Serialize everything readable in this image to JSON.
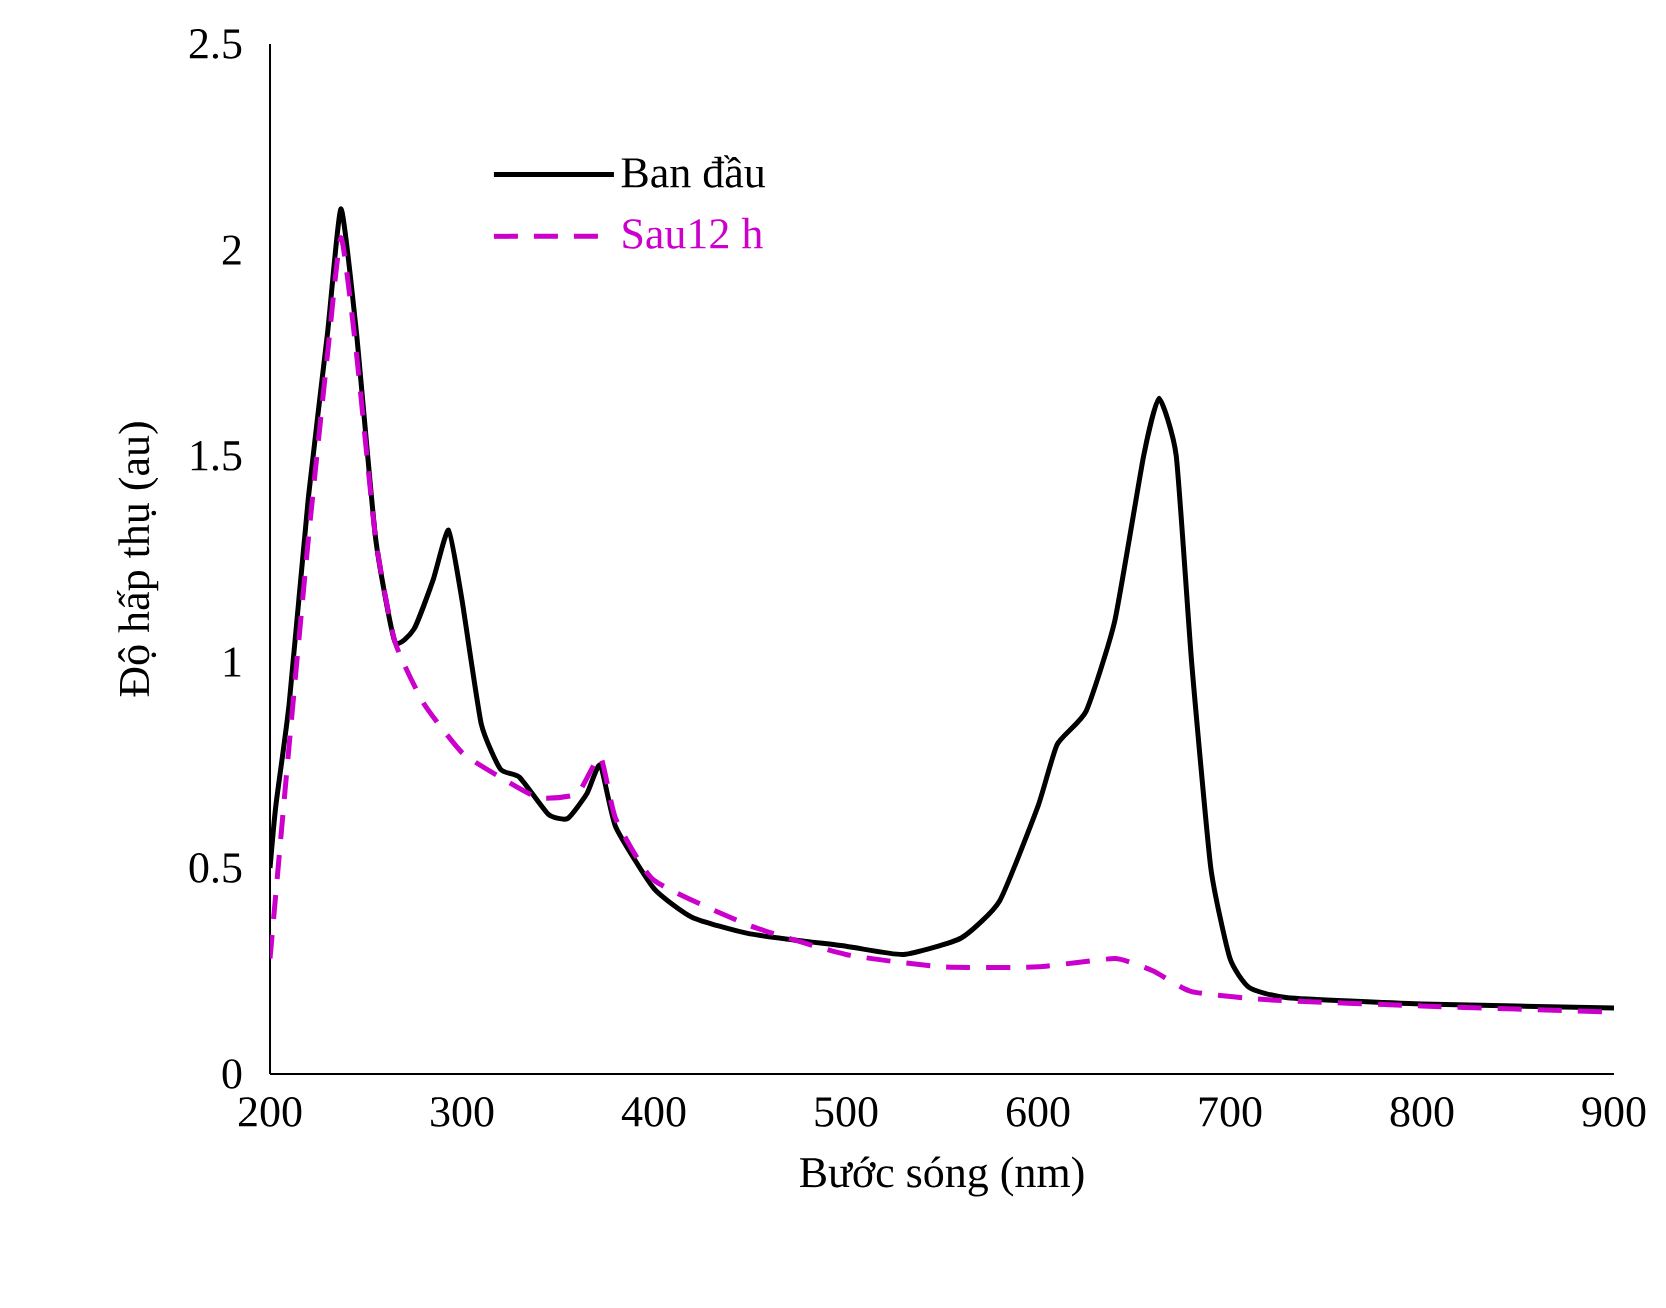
{
  "chart_data": {
    "type": "line",
    "xlabel": "Bước sóng (nm)",
    "ylabel": "Độ hấp thụ (au)",
    "series": [
      {
        "name": "Ban đầu",
        "color": "#000000",
        "line_style": "solid",
        "x": [
          200,
          203,
          210,
          220,
          230,
          237,
          245,
          255,
          265,
          275,
          285,
          293,
          300,
          310,
          320,
          330,
          345,
          355,
          365,
          372,
          380,
          400,
          420,
          450,
          500,
          530,
          560,
          580,
          600,
          610,
          625,
          640,
          655,
          663,
          672,
          680,
          690,
          700,
          710,
          730,
          800,
          900
        ],
        "values": [
          0.5,
          0.65,
          0.9,
          1.4,
          1.8,
          2.1,
          1.8,
          1.3,
          1.05,
          1.08,
          1.2,
          1.32,
          1.15,
          0.85,
          0.74,
          0.72,
          0.63,
          0.62,
          0.68,
          0.75,
          0.6,
          0.45,
          0.38,
          0.34,
          0.31,
          0.29,
          0.33,
          0.42,
          0.65,
          0.8,
          0.88,
          1.1,
          1.5,
          1.64,
          1.5,
          1.0,
          0.5,
          0.28,
          0.21,
          0.185,
          0.17,
          0.16
        ]
      },
      {
        "name": "Sau12 h",
        "color": "#cc00cc",
        "line_style": "dashed",
        "x": [
          200,
          210,
          220,
          230,
          237,
          245,
          255,
          265,
          280,
          300,
          320,
          340,
          360,
          372,
          380,
          400,
          450,
          500,
          550,
          600,
          640,
          660,
          680,
          720,
          800,
          900
        ],
        "values": [
          0.28,
          0.8,
          1.3,
          1.75,
          2.03,
          1.75,
          1.3,
          1.05,
          0.9,
          0.78,
          0.72,
          0.67,
          0.68,
          0.77,
          0.62,
          0.47,
          0.36,
          0.29,
          0.26,
          0.26,
          0.28,
          0.25,
          0.2,
          0.18,
          0.165,
          0.15
        ]
      }
    ],
    "xlim": [
      200,
      900
    ],
    "xticks": [
      200,
      300,
      400,
      500,
      600,
      700,
      800,
      900
    ],
    "ylim": [
      0,
      2.5
    ],
    "yticks": [
      0,
      {
        "value": 0.5,
        "label": "0.5"
      },
      1,
      {
        "value": 1.5,
        "label": "1.5"
      },
      2,
      {
        "value": 2.5,
        "label": "2.5"
      }
    ],
    "grid": false,
    "legend": "top left",
    "marker": "none"
  }
}
